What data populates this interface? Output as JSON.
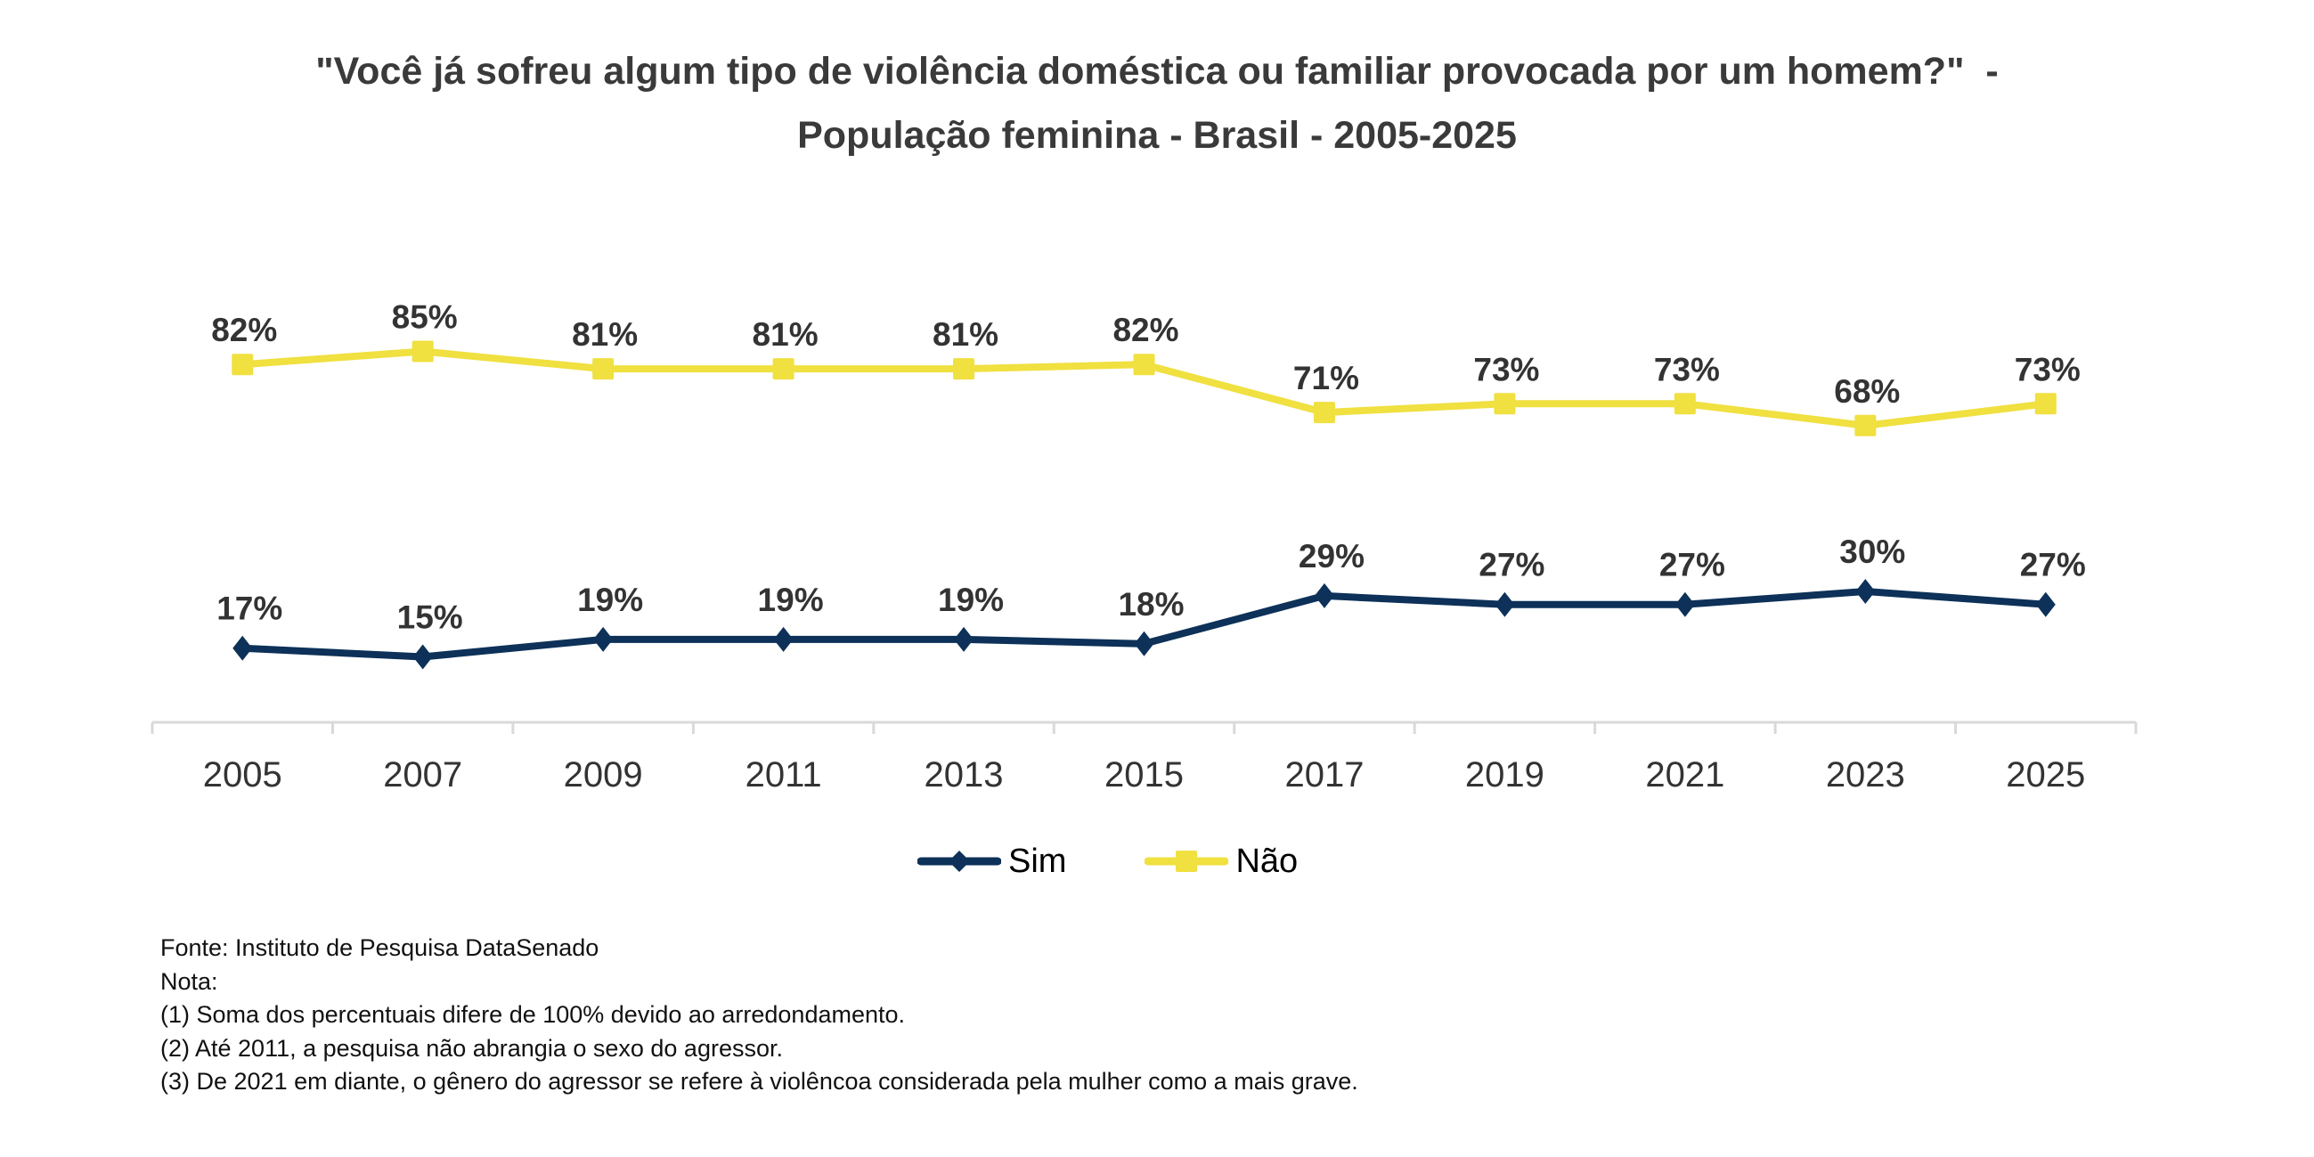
{
  "title": {
    "line1": "\"Você já sofreu algum tipo de violência doméstica ou familiar provocada por um homem?\"  -",
    "line2": "População feminina - Brasil - 2005-2025"
  },
  "colors": {
    "sim": "#0d3158",
    "nao": "#f0e040",
    "axis": "#d9d9d9",
    "text": "#333333"
  },
  "chart_data": {
    "type": "line",
    "title": "\"Você já sofreu algum tipo de violência doméstica ou familiar provocada por um homem?\" - População feminina - Brasil - 2005-2025",
    "xlabel": "",
    "ylabel": "",
    "categories": [
      "2005",
      "2007",
      "2009",
      "2011",
      "2013",
      "2015",
      "2017",
      "2019",
      "2021",
      "2023",
      "2025"
    ],
    "series": [
      {
        "name": "Sim",
        "marker": "diamond",
        "color": "#0d3158",
        "values": [
          17,
          15,
          19,
          19,
          19,
          18,
          29,
          27,
          27,
          30,
          27
        ],
        "labels": [
          "17%",
          "15%",
          "19%",
          "19%",
          "19%",
          "18%",
          "29%",
          "27%",
          "27%",
          "30%",
          "27%"
        ]
      },
      {
        "name": "Não",
        "marker": "square",
        "color": "#f0e040",
        "values": [
          82,
          85,
          81,
          81,
          81,
          82,
          71,
          73,
          73,
          68,
          73
        ],
        "labels": [
          "82%",
          "85%",
          "81%",
          "81%",
          "81%",
          "82%",
          "71%",
          "73%",
          "73%",
          "68%",
          "73%"
        ]
      }
    ],
    "ylim": [
      0,
      100
    ],
    "y_axis_visible": false,
    "grid": false,
    "legend": "bottom-center",
    "unit": "%"
  },
  "legend": {
    "items": [
      {
        "label": "Sim",
        "marker": "diamond-icon"
      },
      {
        "label": "Não",
        "marker": "square-icon"
      }
    ]
  },
  "footnotes": {
    "source": "Fonte: Instituto de Pesquisa DataSenado",
    "note_header": "Nota:",
    "notes": [
      "(1) Soma dos percentuais difere de 100% devido ao arredondamento.",
      "(2) Até 2011, a pesquisa não abrangia o sexo do agressor.",
      "(3) De 2021 em diante, o gênero do agressor se refere à violêncoa considerada pela mulher como a mais grave."
    ]
  }
}
